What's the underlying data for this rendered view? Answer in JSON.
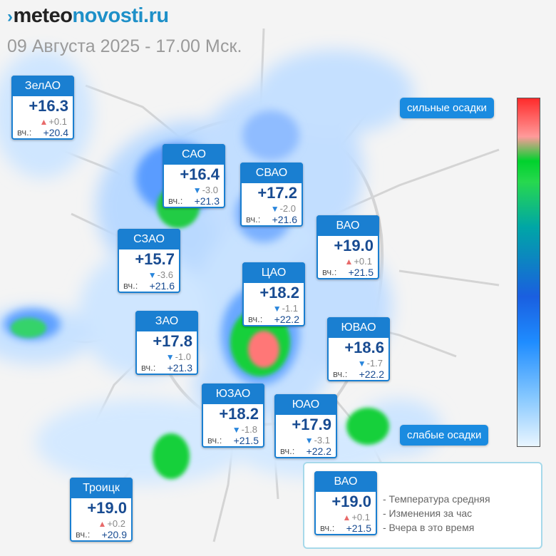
{
  "header": {
    "logo_mark": "›",
    "logo_part1": "meteo",
    "logo_part2": "novosti.ru",
    "subtitle": "09 Августа 2025 - 17.00 Мск."
  },
  "scale": {
    "top_label": "сильные осадки",
    "bottom_label": "слабые осадки"
  },
  "districts": [
    {
      "id": "zelao",
      "name": "ЗелАО",
      "temp": "+16.3",
      "trend": "up",
      "change": "+0.1",
      "yesterday_label": "вч.:",
      "yesterday": "+20.4"
    },
    {
      "id": "sao",
      "name": "САО",
      "temp": "+16.4",
      "trend": "down",
      "change": "-3.0",
      "yesterday_label": "вч.:",
      "yesterday": "+21.3"
    },
    {
      "id": "svao",
      "name": "СВАО",
      "temp": "+17.2",
      "trend": "down",
      "change": "-2.0",
      "yesterday_label": "вч.:",
      "yesterday": "+21.6"
    },
    {
      "id": "vao",
      "name": "ВАО",
      "temp": "+19.0",
      "trend": "up",
      "change": "+0.1",
      "yesterday_label": "вч.:",
      "yesterday": "+21.5"
    },
    {
      "id": "szao",
      "name": "СЗАО",
      "temp": "+15.7",
      "trend": "down",
      "change": "-3.6",
      "yesterday_label": "вч.:",
      "yesterday": "+21.6"
    },
    {
      "id": "tsao",
      "name": "ЦАО",
      "temp": "+18.2",
      "trend": "down",
      "change": "-1.1",
      "yesterday_label": "вч.:",
      "yesterday": "+22.2"
    },
    {
      "id": "zao",
      "name": "ЗАО",
      "temp": "+17.8",
      "trend": "down",
      "change": "-1.0",
      "yesterday_label": "вч.:",
      "yesterday": "+21.3"
    },
    {
      "id": "yuvao",
      "name": "ЮВАО",
      "temp": "+18.6",
      "trend": "down",
      "change": "-1.7",
      "yesterday_label": "вч.:",
      "yesterday": "+22.2"
    },
    {
      "id": "yuzao",
      "name": "ЮЗАО",
      "temp": "+18.2",
      "trend": "down",
      "change": "-1.8",
      "yesterday_label": "вч.:",
      "yesterday": "+21.5"
    },
    {
      "id": "yuao",
      "name": "ЮАО",
      "temp": "+17.9",
      "trend": "down",
      "change": "-3.1",
      "yesterday_label": "вч.:",
      "yesterday": "+22.2"
    },
    {
      "id": "troitsk",
      "name": "Троицк",
      "temp": "+19.0",
      "trend": "up",
      "change": "+0.2",
      "yesterday_label": "вч.:",
      "yesterday": "+20.9"
    }
  ],
  "legend": {
    "sample": {
      "name": "ВАО",
      "temp": "+19.0",
      "trend": "up",
      "change": "+0.1",
      "yesterday_label": "вч.:",
      "yesterday": "+21.5"
    },
    "lines": [
      "- Температура средняя",
      "- Изменения за час",
      "- Вчера в это время"
    ]
  },
  "colors": {
    "accent": "#1a7fd1",
    "temp_text": "#184b91",
    "trend_up": "#e86a6a",
    "trend_down": "#2a86dc",
    "precip_light": "#bcdcff",
    "precip_medium": "#3f8dff",
    "precip_heavy_green": "#18d03a",
    "precip_heavy_red": "#ff7777"
  }
}
